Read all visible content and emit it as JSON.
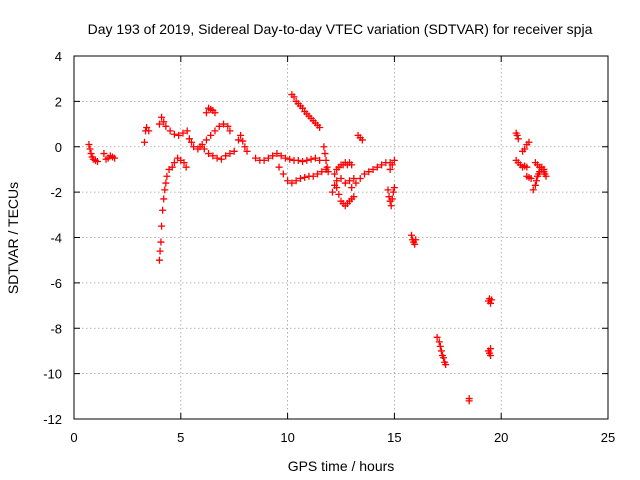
{
  "chart_data": {
    "type": "scatter",
    "title": "Day 193 of 2019, Sidereal Day-to-day VTEC variation (SDTVAR) for receiver spja",
    "xlabel": "GPS time / hours",
    "ylabel": "SDTVAR / TECUs",
    "xlim": [
      0,
      25
    ],
    "ylim": [
      -12,
      4
    ],
    "xticks": [
      0,
      5,
      10,
      15,
      20,
      25
    ],
    "yticks": [
      4,
      2,
      0,
      -2,
      -4,
      -6,
      -8,
      -10,
      -12
    ],
    "grid": true,
    "marker": "plus",
    "color": "#ff0000",
    "series": [
      {
        "name": "SDTVAR",
        "points": [
          [
            0.7,
            0.1
          ],
          [
            0.75,
            -0.1
          ],
          [
            0.8,
            -0.3
          ],
          [
            0.85,
            -0.45
          ],
          [
            0.9,
            -0.55
          ],
          [
            1.0,
            -0.6
          ],
          [
            1.1,
            -0.65
          ],
          [
            1.4,
            -0.3
          ],
          [
            1.5,
            -0.55
          ],
          [
            1.6,
            -0.5
          ],
          [
            1.7,
            -0.4
          ],
          [
            1.8,
            -0.45
          ],
          [
            1.9,
            -0.5
          ],
          [
            3.3,
            0.2
          ],
          [
            3.35,
            0.7
          ],
          [
            3.4,
            0.85
          ],
          [
            3.5,
            0.7
          ],
          [
            4.0,
            -5.0
          ],
          [
            4.03,
            -4.6
          ],
          [
            4.07,
            -4.2
          ],
          [
            4.1,
            -3.5
          ],
          [
            4.15,
            -2.8
          ],
          [
            4.2,
            -2.3
          ],
          [
            4.25,
            -1.9
          ],
          [
            4.3,
            -1.6
          ],
          [
            4.35,
            -1.3
          ],
          [
            4.45,
            -1.0
          ],
          [
            4.6,
            -0.9
          ],
          [
            4.7,
            -0.7
          ],
          [
            4.85,
            -0.5
          ],
          [
            5.0,
            -0.6
          ],
          [
            5.15,
            -0.7
          ],
          [
            5.25,
            -0.9
          ],
          [
            4.0,
            1.0
          ],
          [
            4.1,
            1.3
          ],
          [
            4.2,
            1.1
          ],
          [
            4.3,
            0.9
          ],
          [
            4.5,
            0.7
          ],
          [
            4.7,
            0.55
          ],
          [
            4.9,
            0.5
          ],
          [
            5.1,
            0.6
          ],
          [
            5.3,
            0.7
          ],
          [
            5.4,
            0.35
          ],
          [
            5.5,
            0.2
          ],
          [
            5.6,
            0.0
          ],
          [
            5.8,
            -0.1
          ],
          [
            6.0,
            0.1
          ],
          [
            6.2,
            0.3
          ],
          [
            6.4,
            0.5
          ],
          [
            6.6,
            0.7
          ],
          [
            6.8,
            0.9
          ],
          [
            7.0,
            1.0
          ],
          [
            7.2,
            0.9
          ],
          [
            7.3,
            0.7
          ],
          [
            6.2,
            1.5
          ],
          [
            6.3,
            1.7
          ],
          [
            6.4,
            1.65
          ],
          [
            6.5,
            1.6
          ],
          [
            6.6,
            1.5
          ],
          [
            5.9,
            0.0
          ],
          [
            6.1,
            -0.1
          ],
          [
            6.3,
            -0.3
          ],
          [
            6.5,
            -0.4
          ],
          [
            6.7,
            -0.5
          ],
          [
            6.9,
            -0.55
          ],
          [
            7.1,
            -0.4
          ],
          [
            7.3,
            -0.3
          ],
          [
            7.5,
            -0.2
          ],
          [
            7.7,
            0.3
          ],
          [
            7.8,
            0.5
          ],
          [
            7.9,
            0.25
          ],
          [
            8.0,
            0.0
          ],
          [
            8.1,
            -0.2
          ],
          [
            8.5,
            -0.5
          ],
          [
            8.7,
            -0.6
          ],
          [
            8.9,
            -0.6
          ],
          [
            9.1,
            -0.5
          ],
          [
            9.3,
            -0.4
          ],
          [
            9.5,
            -0.3
          ],
          [
            9.7,
            -0.4
          ],
          [
            9.9,
            -0.5
          ],
          [
            10.1,
            -0.55
          ],
          [
            10.3,
            -0.6
          ],
          [
            10.5,
            -0.6
          ],
          [
            10.7,
            -0.65
          ],
          [
            10.9,
            -0.6
          ],
          [
            11.1,
            -0.55
          ],
          [
            11.3,
            -0.5
          ],
          [
            11.5,
            -0.6
          ],
          [
            9.6,
            -0.9
          ],
          [
            9.8,
            -1.2
          ],
          [
            10.0,
            -1.5
          ],
          [
            10.2,
            -1.6
          ],
          [
            10.4,
            -1.5
          ],
          [
            10.6,
            -1.4
          ],
          [
            10.8,
            -1.35
          ],
          [
            11.0,
            -1.3
          ],
          [
            11.2,
            -1.3
          ],
          [
            11.4,
            -1.2
          ],
          [
            11.6,
            -1.1
          ],
          [
            11.8,
            -1.0
          ],
          [
            10.2,
            2.3
          ],
          [
            10.3,
            2.2
          ],
          [
            10.4,
            2.0
          ],
          [
            10.5,
            1.9
          ],
          [
            10.6,
            1.8
          ],
          [
            10.7,
            1.7
          ],
          [
            10.8,
            1.55
          ],
          [
            10.9,
            1.45
          ],
          [
            11.0,
            1.35
          ],
          [
            11.1,
            1.25
          ],
          [
            11.2,
            1.15
          ],
          [
            11.3,
            1.05
          ],
          [
            11.4,
            0.95
          ],
          [
            11.5,
            0.85
          ],
          [
            11.7,
            0.0
          ],
          [
            11.75,
            -0.3
          ],
          [
            11.8,
            -0.6
          ],
          [
            11.85,
            -0.9
          ],
          [
            11.9,
            -1.1
          ],
          [
            12.1,
            -2.0
          ],
          [
            12.2,
            -1.7
          ],
          [
            12.3,
            -1.8
          ],
          [
            12.4,
            -2.1
          ],
          [
            12.5,
            -2.4
          ],
          [
            12.6,
            -2.5
          ],
          [
            12.7,
            -2.6
          ],
          [
            12.8,
            -2.5
          ],
          [
            12.9,
            -2.4
          ],
          [
            13.0,
            -2.3
          ],
          [
            13.1,
            -2.2
          ],
          [
            12.2,
            -1.2
          ],
          [
            12.3,
            -1.0
          ],
          [
            12.4,
            -0.9
          ],
          [
            12.5,
            -0.8
          ],
          [
            12.6,
            -0.8
          ],
          [
            12.7,
            -0.7
          ],
          [
            12.8,
            -0.8
          ],
          [
            12.9,
            -0.7
          ],
          [
            13.0,
            -0.8
          ],
          [
            12.3,
            -1.5
          ],
          [
            12.5,
            -1.4
          ],
          [
            12.7,
            -1.6
          ],
          [
            12.9,
            -1.5
          ],
          [
            13.1,
            -1.4
          ],
          [
            13.0,
            -1.8
          ],
          [
            13.2,
            -1.6
          ],
          [
            13.4,
            -1.4
          ],
          [
            13.6,
            -1.2
          ],
          [
            13.8,
            -1.1
          ],
          [
            14.0,
            -1.0
          ],
          [
            14.2,
            -0.9
          ],
          [
            14.4,
            -0.8
          ],
          [
            14.6,
            -0.7
          ],
          [
            14.8,
            -0.7
          ],
          [
            13.3,
            0.5
          ],
          [
            13.4,
            0.4
          ],
          [
            13.5,
            0.3
          ],
          [
            14.7,
            -1.9
          ],
          [
            14.75,
            -2.2
          ],
          [
            14.8,
            -2.4
          ],
          [
            14.85,
            -2.6
          ],
          [
            14.9,
            -2.3
          ],
          [
            14.95,
            -2.0
          ],
          [
            15.0,
            -1.8
          ],
          [
            14.8,
            -1.0
          ],
          [
            14.9,
            -0.8
          ],
          [
            15.0,
            -0.6
          ],
          [
            15.8,
            -3.9
          ],
          [
            15.85,
            -4.1
          ],
          [
            15.9,
            -4.2
          ],
          [
            15.95,
            -4.3
          ],
          [
            16.0,
            -4.1
          ],
          [
            17.0,
            -8.4
          ],
          [
            17.1,
            -8.6
          ],
          [
            17.15,
            -8.8
          ],
          [
            17.2,
            -9.0
          ],
          [
            17.25,
            -9.2
          ],
          [
            17.3,
            -9.3
          ],
          [
            17.35,
            -9.5
          ],
          [
            17.4,
            -9.6
          ],
          [
            18.5,
            -11.1
          ],
          [
            18.5,
            -11.2
          ],
          [
            19.4,
            -9.0
          ],
          [
            19.45,
            -9.1
          ],
          [
            19.5,
            -8.9
          ],
          [
            19.5,
            -9.2
          ],
          [
            19.4,
            -6.8
          ],
          [
            19.45,
            -6.7
          ],
          [
            19.5,
            -6.9
          ],
          [
            19.55,
            -6.75
          ],
          [
            20.7,
            0.6
          ],
          [
            20.75,
            0.5
          ],
          [
            20.8,
            0.35
          ],
          [
            20.7,
            -0.6
          ],
          [
            20.8,
            -0.7
          ],
          [
            20.9,
            -0.8
          ],
          [
            21.0,
            -0.9
          ],
          [
            21.1,
            -0.85
          ],
          [
            21.2,
            -0.9
          ],
          [
            21.0,
            -0.2
          ],
          [
            21.1,
            -0.1
          ],
          [
            21.2,
            0.1
          ],
          [
            21.3,
            0.2
          ],
          [
            21.2,
            -1.3
          ],
          [
            21.3,
            -1.35
          ],
          [
            21.4,
            -1.4
          ],
          [
            21.5,
            -1.9
          ],
          [
            21.6,
            -1.7
          ],
          [
            21.65,
            -1.5
          ],
          [
            21.7,
            -1.3
          ],
          [
            21.75,
            -1.2
          ],
          [
            21.8,
            -1.1
          ],
          [
            21.9,
            -1.0
          ],
          [
            22.0,
            -1.1
          ],
          [
            22.05,
            -1.2
          ],
          [
            22.1,
            -1.3
          ],
          [
            21.6,
            -0.7
          ],
          [
            21.7,
            -0.8
          ],
          [
            21.8,
            -0.9
          ],
          [
            21.9,
            -0.9
          ],
          [
            22.0,
            -1.0
          ]
        ]
      }
    ]
  }
}
